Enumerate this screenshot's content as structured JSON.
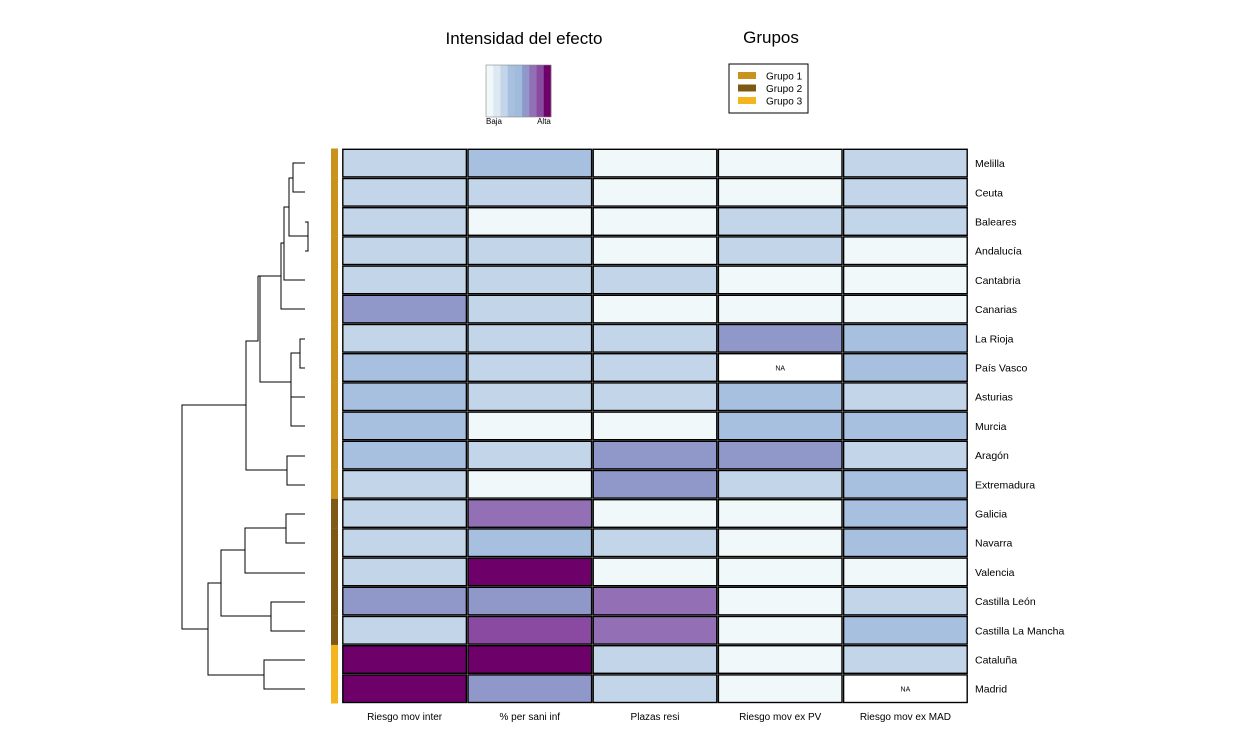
{
  "chart_data": {
    "type": "heatmap",
    "title_intensity": "Intensidad del efecto",
    "title_groups": "Grupos",
    "intensity_scale": {
      "low_label": "Baja",
      "high_label": "Alta",
      "colors": [
        "#f0f8fa",
        "#dde8f2",
        "#c3d5e8",
        "#a7c0df",
        "#9fbcdc",
        "#9098c9",
        "#9370b6",
        "#8b4aa1",
        "#6e006a"
      ]
    },
    "groups": [
      {
        "name": "Grupo 1",
        "color": "#c9921c"
      },
      {
        "name": "Grupo 2",
        "color": "#7c5a14"
      },
      {
        "name": "Grupo 3",
        "color": "#f4b51f"
      }
    ],
    "columns": [
      "Riesgo mov inter",
      "% per sani inf",
      "Plazas resi",
      "Riesgo mov ex PV",
      "Riesgo mov ex MAD"
    ],
    "na_label": "NA",
    "rows": [
      {
        "name": "Melilla",
        "group": 0,
        "levels": [
          2,
          3,
          0,
          0,
          2
        ]
      },
      {
        "name": "Ceuta",
        "group": 0,
        "levels": [
          2,
          2,
          0,
          0,
          2
        ]
      },
      {
        "name": "Baleares",
        "group": 0,
        "levels": [
          2,
          0,
          0,
          2,
          2
        ]
      },
      {
        "name": "Andalucía",
        "group": 0,
        "levels": [
          2,
          2,
          0,
          2,
          0
        ]
      },
      {
        "name": "Cantabria",
        "group": 0,
        "levels": [
          2,
          2,
          2,
          0,
          0
        ]
      },
      {
        "name": "Canarias",
        "group": 0,
        "levels": [
          5,
          2,
          0,
          0,
          0
        ]
      },
      {
        "name": "La Rioja",
        "group": 0,
        "levels": [
          2,
          2,
          2,
          5,
          3
        ]
      },
      {
        "name": "País Vasco",
        "group": 0,
        "levels": [
          3,
          2,
          2,
          null,
          3
        ]
      },
      {
        "name": "Asturias",
        "group": 0,
        "levels": [
          3,
          2,
          2,
          3,
          2
        ]
      },
      {
        "name": "Murcia",
        "group": 0,
        "levels": [
          3,
          0,
          0,
          3,
          3
        ]
      },
      {
        "name": "Aragón",
        "group": 0,
        "levels": [
          3,
          2,
          5,
          5,
          2
        ]
      },
      {
        "name": "Extremadura",
        "group": 0,
        "levels": [
          2,
          0,
          5,
          2,
          3
        ]
      },
      {
        "name": "Galicia",
        "group": 1,
        "levels": [
          2,
          6,
          0,
          0,
          3
        ]
      },
      {
        "name": "Navarra",
        "group": 1,
        "levels": [
          2,
          3,
          2,
          0,
          3
        ]
      },
      {
        "name": "Valencia",
        "group": 1,
        "levels": [
          2,
          8,
          0,
          0,
          0
        ]
      },
      {
        "name": "Castilla León",
        "group": 1,
        "levels": [
          5,
          5,
          6,
          0,
          2
        ]
      },
      {
        "name": "Castilla La Mancha",
        "group": 1,
        "levels": [
          2,
          7,
          6,
          0,
          3
        ]
      },
      {
        "name": "Cataluña",
        "group": 2,
        "levels": [
          8,
          8,
          2,
          0,
          2
        ]
      },
      {
        "name": "Madrid",
        "group": 2,
        "levels": [
          8,
          5,
          2,
          0,
          null
        ]
      }
    ],
    "dendrogram": "hierarchical clustering of rows (left side)"
  }
}
